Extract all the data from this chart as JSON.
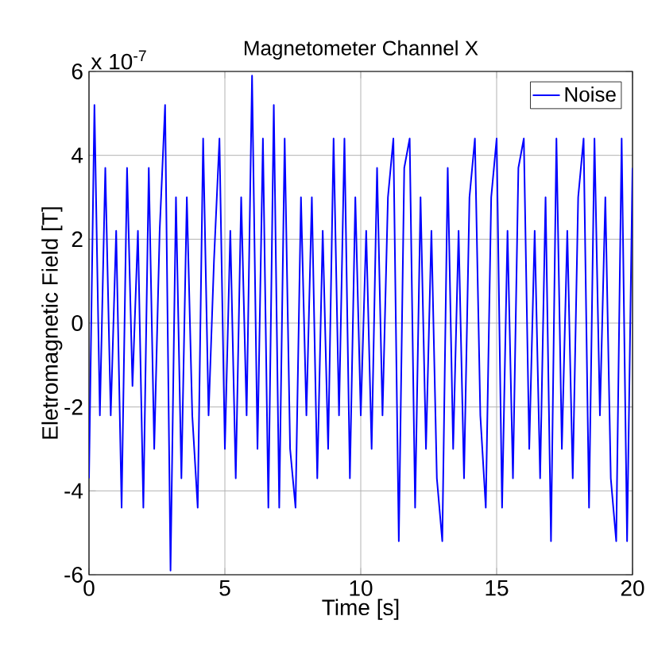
{
  "chart_data": {
    "type": "line",
    "title": "Magnetometer Channel X",
    "xlabel": "Time [s]",
    "ylabel": "Eletromagnetic Field [T]",
    "annotations": [
      "x 10$^{-7}$"
    ],
    "xlim": [
      0,
      20
    ],
    "xticks": [
      0,
      5,
      10,
      15,
      20
    ],
    "ylim": [
      -6,
      6
    ],
    "yticks": [
      -6,
      -4,
      -2,
      0,
      2,
      4,
      6
    ],
    "grid": true,
    "legend": "top right",
    "marker": "none",
    "line_style": "solid",
    "x": [
      0.0,
      0.2,
      0.4,
      0.6,
      0.8,
      1.0,
      1.2,
      1.4,
      1.6,
      1.8,
      2.0,
      2.2,
      2.4,
      2.6,
      2.8,
      3.0,
      3.2,
      3.4,
      3.6,
      3.8,
      4.0,
      4.2,
      4.4,
      4.6,
      4.8,
      5.0,
      5.2,
      5.4,
      5.6,
      5.8,
      6.0,
      6.2,
      6.4,
      6.6,
      6.8,
      7.0,
      7.2,
      7.4,
      7.6,
      7.8,
      8.0,
      8.2,
      8.4,
      8.6,
      8.8,
      9.0,
      9.2,
      9.4,
      9.6,
      9.8,
      10.0,
      10.2,
      10.4,
      10.6,
      10.8,
      11.0,
      11.2,
      11.4,
      11.6,
      11.8,
      12.0,
      12.2,
      12.4,
      12.6,
      12.8,
      13.0,
      13.2,
      13.4,
      13.6,
      13.8,
      14.0,
      14.2,
      14.4,
      14.6,
      14.8,
      15.0,
      15.2,
      15.4,
      15.6,
      15.8,
      16.0,
      16.2,
      16.4,
      16.6,
      16.8,
      17.0,
      17.2,
      17.4,
      17.6,
      17.8,
      18.0,
      18.2,
      18.4,
      18.6,
      18.8,
      19.0,
      19.2,
      19.4,
      19.6,
      19.8,
      20.0
    ],
    "series": [
      {
        "name": "Noise",
        "color": "#0000ff",
        "values": [
          -3.7,
          5.2,
          -2.2,
          3.7,
          -2.2,
          2.2,
          -4.4,
          3.7,
          -1.5,
          2.2,
          -4.4,
          3.7,
          -3.0,
          2.2,
          5.2,
          -5.9,
          3.0,
          -3.7,
          3.0,
          -2.2,
          -4.4,
          4.4,
          -2.2,
          1.5,
          4.4,
          -3.0,
          2.2,
          -3.7,
          3.0,
          -2.2,
          5.9,
          -3.0,
          4.4,
          -4.4,
          5.2,
          -4.4,
          4.4,
          -3.0,
          -4.4,
          3.0,
          -2.2,
          3.0,
          -3.7,
          2.2,
          -3.0,
          4.4,
          -2.2,
          4.4,
          -3.7,
          3.0,
          -2.2,
          2.2,
          -3.0,
          3.7,
          -2.2,
          3.0,
          4.4,
          -5.2,
          3.7,
          4.4,
          -4.4,
          3.0,
          -3.0,
          2.2,
          -3.7,
          -5.2,
          3.7,
          -3.0,
          2.2,
          -3.7,
          3.0,
          4.4,
          -2.2,
          -4.4,
          3.0,
          4.4,
          -4.4,
          2.2,
          -3.7,
          3.7,
          4.4,
          -3.0,
          2.2,
          -3.7,
          3.0,
          -5.2,
          4.4,
          -3.0,
          2.2,
          -3.7,
          3.0,
          4.4,
          -4.4,
          4.4,
          -2.2,
          3.0,
          -3.7,
          -5.2,
          4.4,
          -5.2,
          3.7
        ]
      }
    ]
  }
}
